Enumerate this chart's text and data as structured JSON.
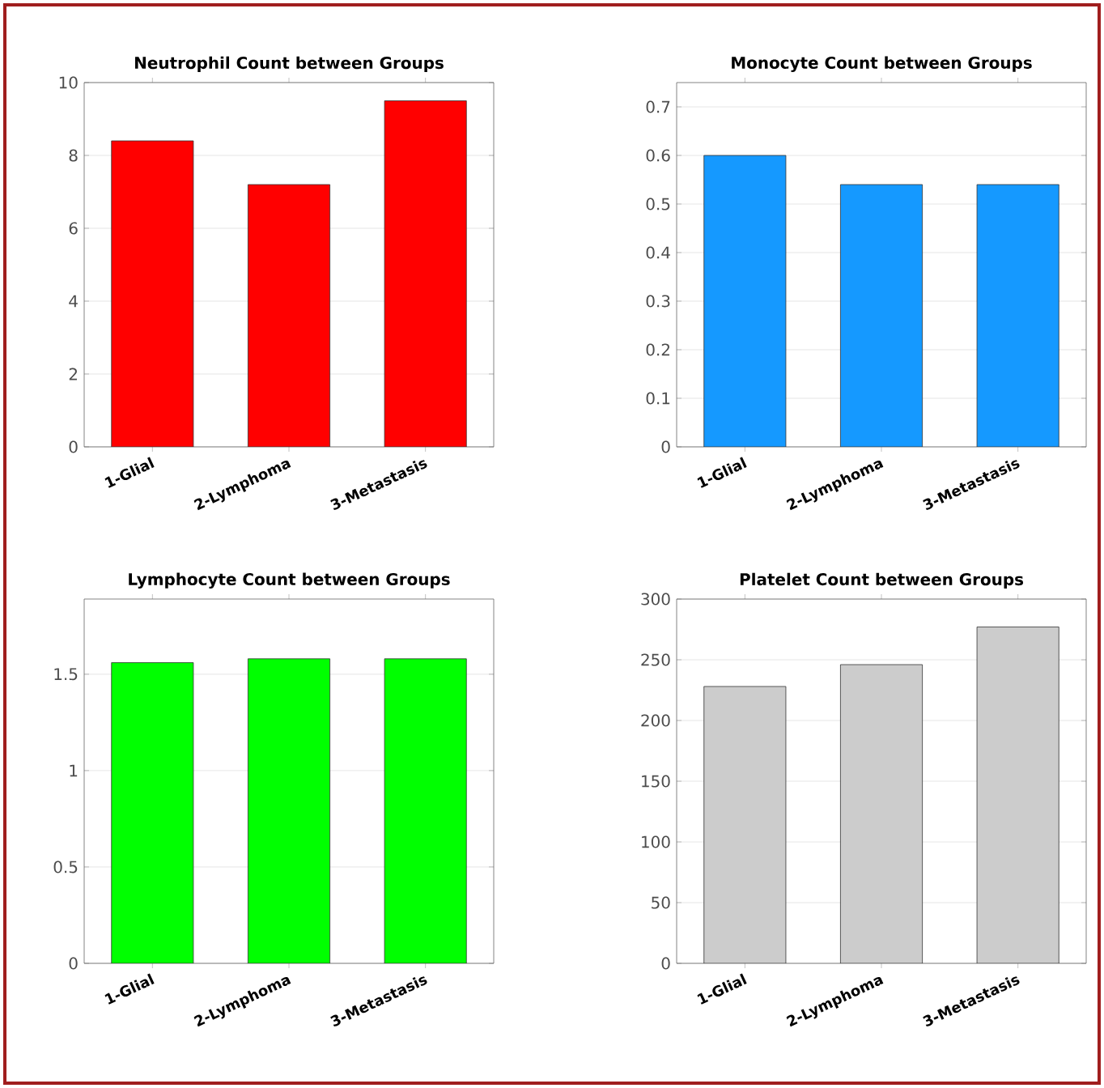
{
  "chart_data": [
    {
      "type": "bar",
      "title": "Neutrophil Count between Groups",
      "categories": [
        "1-Glial",
        "2-Lymphoma",
        "3-Metastasis"
      ],
      "values": [
        8.4,
        7.2,
        9.5
      ],
      "color": "#ff0000",
      "ylim": [
        0,
        10
      ],
      "yticks": [
        0,
        2,
        4,
        6,
        8,
        10
      ],
      "grid": "y"
    },
    {
      "type": "bar",
      "title": "Monocyte Count between Groups",
      "categories": [
        "1-Glial",
        "2-Lymphoma",
        "3-Metastasis"
      ],
      "values": [
        0.6,
        0.54,
        0.54
      ],
      "color": "#1599ff",
      "ylim": [
        0,
        0.75
      ],
      "yticks": [
        0,
        0.1,
        0.2,
        0.3,
        0.4,
        0.5,
        0.6,
        0.7
      ],
      "grid": "y"
    },
    {
      "type": "bar",
      "title": "Lymphocyte Count between Groups",
      "categories": [
        "1-Glial",
        "2-Lymphoma",
        "3-Metastasis"
      ],
      "values": [
        1.56,
        1.58,
        1.58
      ],
      "color": "#00ff00",
      "ylim": [
        0,
        1.89
      ],
      "yticks": [
        0,
        0.5,
        1,
        1.5
      ],
      "grid": "y"
    },
    {
      "type": "bar",
      "title": "Platelet Count between Groups",
      "categories": [
        "1-Glial",
        "2-Lymphoma",
        "3-Metastasis"
      ],
      "values": [
        228,
        246,
        277
      ],
      "color": "#cccccc",
      "ylim": [
        0,
        300
      ],
      "yticks": [
        0,
        50,
        100,
        150,
        200,
        250,
        300
      ],
      "grid": "y"
    }
  ]
}
